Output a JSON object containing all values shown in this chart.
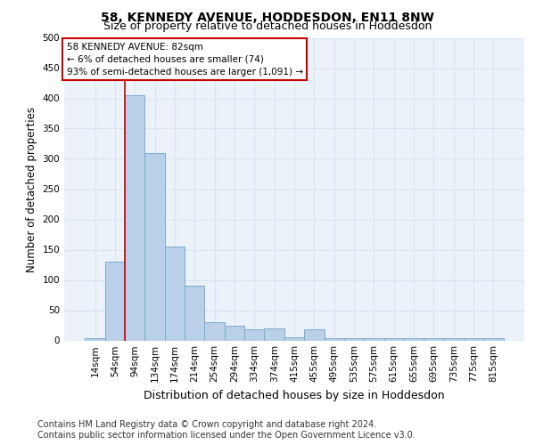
{
  "title": "58, KENNEDY AVENUE, HODDESDON, EN11 8NW",
  "subtitle": "Size of property relative to detached houses in Hoddesdon",
  "xlabel": "Distribution of detached houses by size in Hoddesdon",
  "ylabel": "Number of detached properties",
  "footer_line1": "Contains HM Land Registry data © Crown copyright and database right 2024.",
  "footer_line2": "Contains public sector information licensed under the Open Government Licence v3.0.",
  "categories": [
    "14sqm",
    "54sqm",
    "94sqm",
    "134sqm",
    "174sqm",
    "214sqm",
    "254sqm",
    "294sqm",
    "334sqm",
    "374sqm",
    "415sqm",
    "455sqm",
    "495sqm",
    "535sqm",
    "575sqm",
    "615sqm",
    "655sqm",
    "695sqm",
    "735sqm",
    "775sqm",
    "815sqm"
  ],
  "values": [
    3,
    130,
    405,
    310,
    155,
    90,
    30,
    24,
    18,
    20,
    5,
    18,
    3,
    3,
    3,
    3,
    3,
    3,
    3,
    3,
    3
  ],
  "bar_color": "#bad0e8",
  "bar_edge_color": "#7aacd0",
  "vline_x_index": 1.5,
  "vline_color": "#cc0000",
  "annotation_text": "58 KENNEDY AVENUE: 82sqm\n← 6% of detached houses are smaller (74)\n93% of semi-detached houses are larger (1,091) →",
  "annotation_box_color": "#ffffff",
  "annotation_box_edge": "#cc0000",
  "ylim": [
    0,
    500
  ],
  "yticks": [
    0,
    50,
    100,
    150,
    200,
    250,
    300,
    350,
    400,
    450,
    500
  ],
  "bg_color": "#ecf2fa",
  "fig_bg": "#ffffff",
  "grid_color": "#d8e4f0",
  "title_fontsize": 10,
  "subtitle_fontsize": 9,
  "xlabel_fontsize": 9,
  "ylabel_fontsize": 8.5,
  "tick_fontsize": 7.5,
  "annotation_fontsize": 7.5,
  "footer_fontsize": 7
}
